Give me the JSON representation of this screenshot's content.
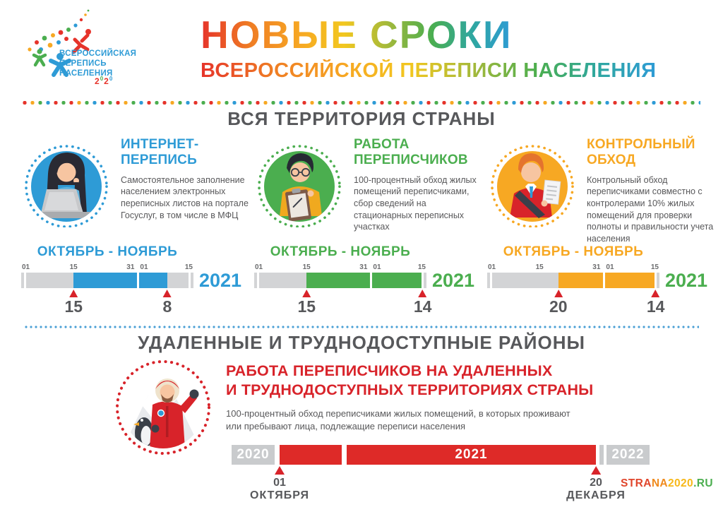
{
  "logo": {
    "org_lines": [
      "ВСЕРОССИЙСКАЯ",
      "ПЕРЕПИСЬ",
      "НАСЕЛЕНИЯ"
    ],
    "year_mark": [
      {
        "text": "2",
        "color": "#E6332A"
      },
      {
        "text": "0",
        "color": "#4BAE4F"
      },
      {
        "text": "2",
        "color": "#E6332A"
      },
      {
        "text": "0",
        "color": "#2E9BD6"
      }
    ]
  },
  "header": {
    "title": "НОВЫЕ СРОКИ",
    "subtitle": "ВСЕРОССИЙСКОЙ ПЕРЕПИСИ НАСЕЛЕНИЯ"
  },
  "colors": {
    "blue": "#2E9BD6",
    "green": "#4BAE4F",
    "orange": "#F7A823",
    "red": "#D8232A",
    "bar_red": "#DE2A28",
    "bar_gray": "#D3D4D6",
    "text_dark": "#57585B"
  },
  "sections": {
    "all_territory": {
      "title": "ВСЯ ТЕРРИТОРИЯ СТРАНЫ",
      "columns": [
        {
          "heading": "ИНТЕРНЕТ-ПЕРЕПИСЬ",
          "description": "Самостоятельное заполнение населением электронных переписных листов на портале Госуслуг, в том числе в МФЦ",
          "illustration": "woman-with-laptop",
          "accent": "#2E9BD6",
          "period": "ОКТЯБРЬ - НОЯБРЬ",
          "year": "2021",
          "year_color": "#2E9BD6",
          "timeline": {
            "total_days": 46,
            "month_boundary_day": 31,
            "ticks": [
              "01",
              "15",
              "31",
              "01",
              "15"
            ],
            "range": {
              "from_day": 14,
              "to_day": 39
            },
            "markers": [
              {
                "day": 14,
                "label": "15"
              },
              {
                "day": 39,
                "label": "8"
              }
            ]
          }
        },
        {
          "heading": "РАБОТА ПЕРЕПИСЧИКОВ",
          "description": "100-процентный обход жилых помещений переписчиками, сбор сведений на стационарных переписных участках",
          "illustration": "man-with-clipboard",
          "accent": "#4BAE4F",
          "period": "ОКТЯБРЬ - НОЯБРЬ",
          "year": "2021",
          "year_color": "#4BAE4F",
          "timeline": {
            "total_days": 46,
            "month_boundary_day": 31,
            "ticks": [
              "01",
              "15",
              "31",
              "01",
              "15"
            ],
            "range": {
              "from_day": 14,
              "to_day": 45
            },
            "markers": [
              {
                "day": 14,
                "label": "15"
              },
              {
                "day": 45,
                "label": "14"
              }
            ]
          }
        },
        {
          "heading": "КОНТРОЛЬНЫЙ ОБХОД",
          "description": "Контрольный обход переписчиками совместно с контролерами 10% жилых помещений для проверки полноты и правильности учета населения",
          "illustration": "man-with-document",
          "accent": "#F7A823",
          "period": "ОКТЯБРЬ - НОЯБРЬ",
          "year": "2021",
          "year_color": "#4BAE4F",
          "timeline": {
            "total_days": 46,
            "month_boundary_day": 31,
            "ticks": [
              "01",
              "15",
              "31",
              "01",
              "15"
            ],
            "range": {
              "from_day": 19,
              "to_day": 45
            },
            "markers": [
              {
                "day": 19,
                "label": "20"
              },
              {
                "day": 45,
                "label": "14"
              }
            ]
          }
        }
      ]
    },
    "remote": {
      "title": "УДАЛЕННЫЕ И ТРУДНОДОСТУПНЫЕ РАЙОНЫ",
      "heading_lines": [
        "РАБОТА ПЕРЕПИСЧИКОВ НА УДАЛЕННЫХ",
        "И ТРУДНОДОСТУПНЫХ ТЕРРИТОРИЯХ СТРАНЫ"
      ],
      "description": "100-процентный обход переписчиками жилых помещений, в которых проживают или пребывают лица, подлежащие переписи населения",
      "illustration": "polar-explorer-with-penguin",
      "timeline": {
        "segments": [
          {
            "label": "2020",
            "type": "gray"
          },
          {
            "label": "",
            "type": "red"
          },
          {
            "label": "2021",
            "type": "red"
          },
          {
            "label": "",
            "type": "gray-sliver"
          },
          {
            "label": "2022",
            "type": "gray"
          }
        ],
        "start_marker": {
          "day": "01",
          "month": "ОКТЯБРЯ"
        },
        "end_marker": {
          "day": "20",
          "month": "ДЕКАБРЯ"
        }
      }
    }
  },
  "footer": {
    "site_parts": [
      {
        "text": "STRA",
        "color": "#E0452B"
      },
      {
        "text": "NA",
        "color": "#F08A1D"
      },
      {
        "text": "2020",
        "color": "#F7B819"
      },
      {
        "text": ".RU",
        "color": "#4BAE4F"
      }
    ]
  }
}
